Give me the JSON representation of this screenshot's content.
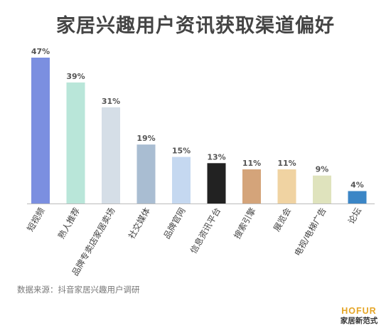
{
  "chart_data": {
    "type": "bar",
    "title": "家居兴趣用户资讯获取渠道偏好",
    "categories": [
      "短视频",
      "熟人推荐",
      "品牌专卖店家居卖场",
      "社交媒体",
      "品牌官网",
      "信息资讯平台",
      "搜索引擎",
      "展览会",
      "电视/电梯广告",
      "论坛"
    ],
    "values": [
      47,
      39,
      31,
      19,
      15,
      13,
      11,
      11,
      9,
      4
    ],
    "value_labels": [
      "47%",
      "39%",
      "31%",
      "19%",
      "15%",
      "13%",
      "11%",
      "11%",
      "9%",
      "4%"
    ],
    "colors": [
      "#7b8fe0",
      "#b9e6d9",
      "#d5dee7",
      "#a9bdd2",
      "#c5d8f0",
      "#222222",
      "#d4a47a",
      "#f0d3a2",
      "#dfe3bd",
      "#3b86c6"
    ],
    "ylim": [
      0,
      47
    ],
    "grid": false,
    "xlabel": "",
    "ylabel": ""
  },
  "source": "数据来源：抖音家居兴趣用户调研",
  "logo": {
    "en": "HOFUR",
    "cn": "家居新范式"
  }
}
